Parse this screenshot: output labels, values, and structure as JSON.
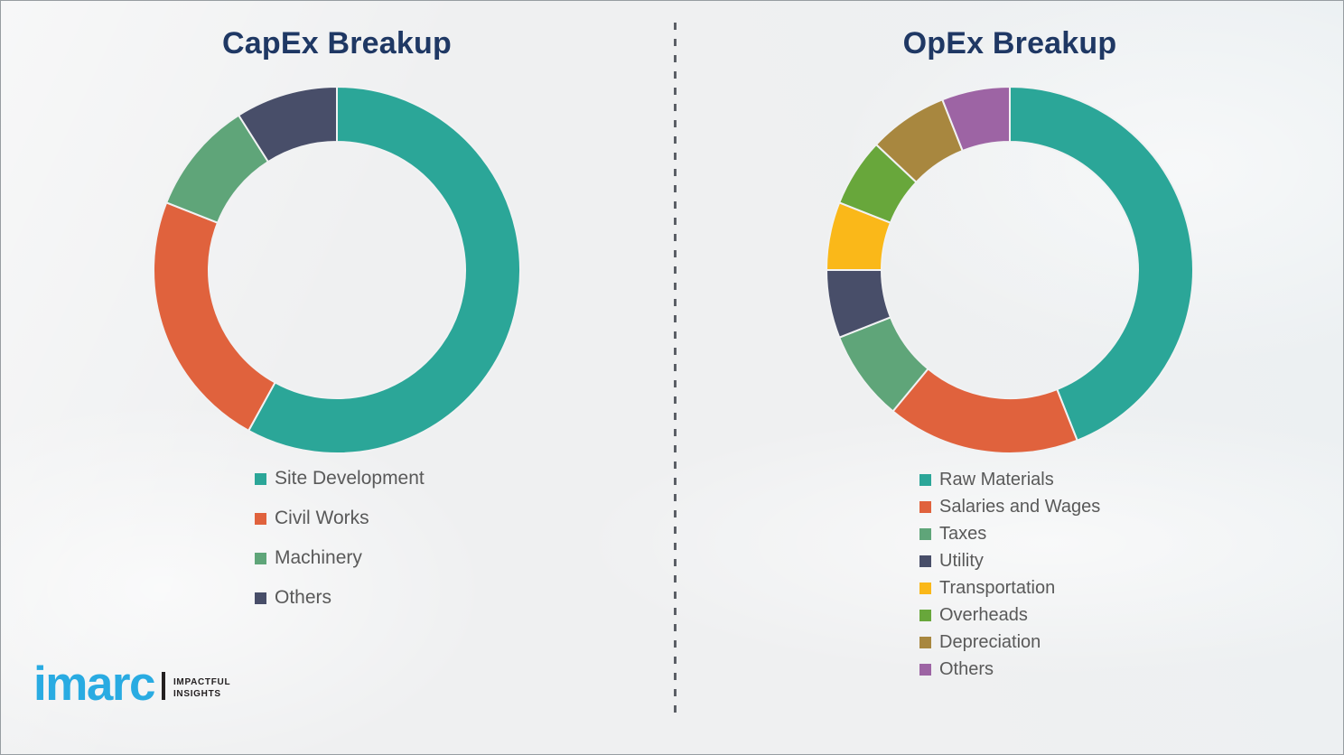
{
  "page": {
    "background_color": "#eff0f1",
    "border_color": "#979da1",
    "divider_color": "#5b5f66",
    "legend_text_color": "#595959"
  },
  "chart_data": [
    {
      "type": "pie",
      "subtype": "donut",
      "title": "CapEx Breakup",
      "title_color": "#1f3864",
      "donut_hole_ratio": 0.7,
      "start_angle_deg": 0,
      "direction": "clockwise",
      "legend_position": "below-left",
      "categories": [
        "Site Development",
        "Civil Works",
        "Machinery",
        "Others"
      ],
      "values": [
        58,
        23,
        10,
        9
      ],
      "colors": [
        "#2ba698",
        "#e0623d",
        "#5fa579",
        "#484e69"
      ]
    },
    {
      "type": "pie",
      "subtype": "donut",
      "title": "OpEx Breakup",
      "title_color": "#1f3864",
      "donut_hole_ratio": 0.7,
      "start_angle_deg": 0,
      "direction": "clockwise",
      "legend_position": "below-left",
      "categories": [
        "Raw Materials",
        "Salaries and Wages",
        "Taxes",
        "Utility",
        "Transportation",
        "Overheads",
        "Depreciation",
        "Others"
      ],
      "values": [
        44,
        17,
        8,
        6,
        6,
        6,
        7,
        6
      ],
      "colors": [
        "#2ba698",
        "#e0623d",
        "#5fa579",
        "#484e69",
        "#fab819",
        "#68a73b",
        "#a8873f",
        "#9d64a4"
      ]
    }
  ],
  "logo": {
    "brand": "imarc",
    "tagline_line1": "IMPACTFUL",
    "tagline_line2": "INSIGHTS",
    "brand_color": "#29abe2",
    "text_color": "#231f20"
  }
}
